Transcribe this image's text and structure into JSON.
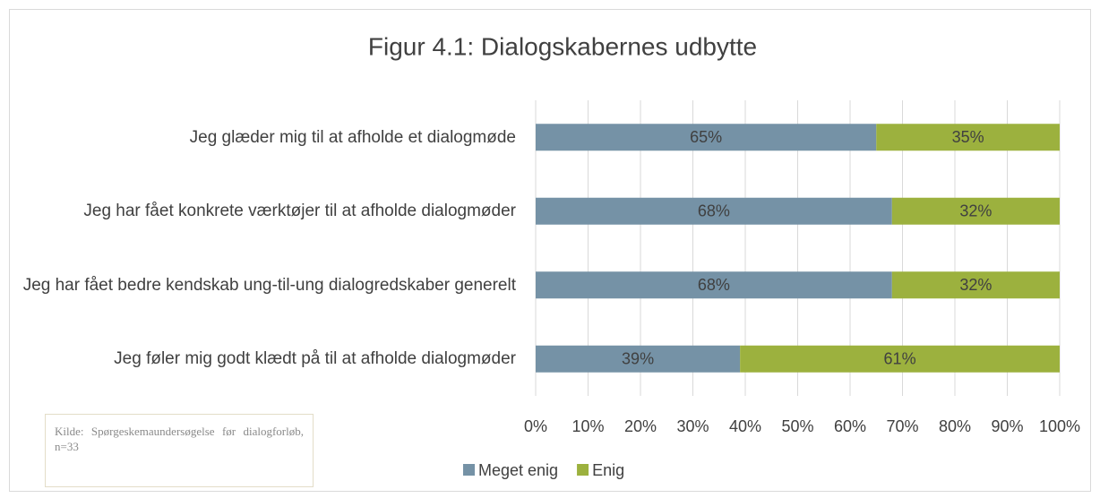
{
  "chart_data": {
    "type": "stacked_barh",
    "title": "Figur 4.1: Dialogskabernes udbytte",
    "categories": [
      "Jeg glæder mig til at afholde et dialogmøde",
      "Jeg har fået konkrete værktøjer til at afholde dialogmøder",
      "Jeg har fået bedre kendskab ung-til-ung dialogredskaber generelt",
      "Jeg føler mig godt klædt på til at afholde dialogmøder"
    ],
    "series": [
      {
        "name": "Meget enig",
        "color": "#7592a6",
        "values": [
          65,
          68,
          68,
          39
        ],
        "value_labels": [
          "65%",
          "68%",
          "68%",
          "39%"
        ]
      },
      {
        "name": "Enig",
        "color": "#9cb13e",
        "values": [
          35,
          32,
          32,
          61
        ],
        "value_labels": [
          "35%",
          "32%",
          "32%",
          "61%"
        ]
      }
    ],
    "xlim": [
      0,
      100
    ],
    "xticks": [
      {
        "value": 0,
        "label": "0%"
      },
      {
        "value": 10,
        "label": "10%"
      },
      {
        "value": 20,
        "label": "20%"
      },
      {
        "value": 30,
        "label": "30%"
      },
      {
        "value": 40,
        "label": "40%"
      },
      {
        "value": 50,
        "label": "50%"
      },
      {
        "value": 60,
        "label": "60%"
      },
      {
        "value": 70,
        "label": "70%"
      },
      {
        "value": 80,
        "label": "80%"
      },
      {
        "value": 90,
        "label": "90%"
      },
      {
        "value": 100,
        "label": "100%"
      }
    ],
    "grid": true,
    "legend": "bottom",
    "annotation": "Kilde: Spørgeskemaundersøgelse før dialogforløb, n=33"
  }
}
